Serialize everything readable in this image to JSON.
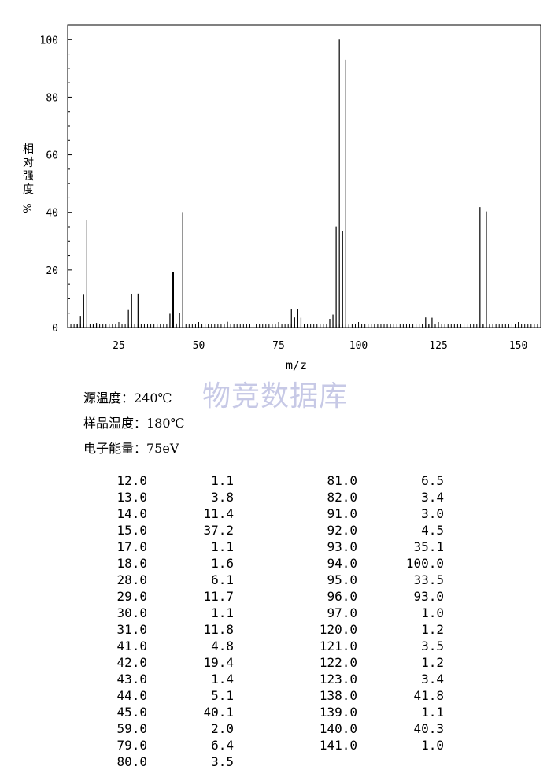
{
  "chart_data": {
    "type": "bar",
    "title": "",
    "xlabel": "m/z",
    "ylabel": "相对强度%",
    "ylabel_chars": [
      "相",
      "对",
      "强",
      "度"
    ],
    "ylabel_suffix": "%",
    "xlim": [
      9,
      157
    ],
    "ylim": [
      0,
      105
    ],
    "x_ticks": [
      "25",
      "50",
      "75",
      "100",
      "125",
      "150"
    ],
    "y_ticks": [
      "0",
      "20",
      "40",
      "60",
      "80",
      "100"
    ],
    "peaks": [
      {
        "mz": 12.0,
        "intensity": 1.1
      },
      {
        "mz": 13.0,
        "intensity": 3.8
      },
      {
        "mz": 14.0,
        "intensity": 11.4
      },
      {
        "mz": 15.0,
        "intensity": 37.2
      },
      {
        "mz": 17.0,
        "intensity": 1.1
      },
      {
        "mz": 18.0,
        "intensity": 1.6
      },
      {
        "mz": 28.0,
        "intensity": 6.1
      },
      {
        "mz": 29.0,
        "intensity": 11.7
      },
      {
        "mz": 30.0,
        "intensity": 1.1
      },
      {
        "mz": 31.0,
        "intensity": 11.8
      },
      {
        "mz": 41.0,
        "intensity": 4.8
      },
      {
        "mz": 42.0,
        "intensity": 19.4
      },
      {
        "mz": 43.0,
        "intensity": 1.4
      },
      {
        "mz": 44.0,
        "intensity": 5.1
      },
      {
        "mz": 45.0,
        "intensity": 40.1
      },
      {
        "mz": 59.0,
        "intensity": 2.0
      },
      {
        "mz": 79.0,
        "intensity": 6.4
      },
      {
        "mz": 80.0,
        "intensity": 3.5
      },
      {
        "mz": 81.0,
        "intensity": 6.5
      },
      {
        "mz": 82.0,
        "intensity": 3.4
      },
      {
        "mz": 91.0,
        "intensity": 3.0
      },
      {
        "mz": 92.0,
        "intensity": 4.5
      },
      {
        "mz": 93.0,
        "intensity": 35.1
      },
      {
        "mz": 94.0,
        "intensity": 100.0
      },
      {
        "mz": 95.0,
        "intensity": 33.5
      },
      {
        "mz": 96.0,
        "intensity": 93.0
      },
      {
        "mz": 97.0,
        "intensity": 1.0
      },
      {
        "mz": 120.0,
        "intensity": 1.2
      },
      {
        "mz": 121.0,
        "intensity": 3.5
      },
      {
        "mz": 122.0,
        "intensity": 1.2
      },
      {
        "mz": 123.0,
        "intensity": 3.4
      },
      {
        "mz": 138.0,
        "intensity": 41.8
      },
      {
        "mz": 139.0,
        "intensity": 1.1
      },
      {
        "mz": 140.0,
        "intensity": 40.3
      },
      {
        "mz": 141.0,
        "intensity": 1.0
      }
    ]
  },
  "watermark": "物竞数据库",
  "conditions": {
    "source_temp": "源温度：240℃",
    "sample_temp": "样品温度：180℃",
    "electron_energy": "电子能量：75eV"
  },
  "table": {
    "left": [
      [
        "12.0",
        "1.1"
      ],
      [
        "13.0",
        "3.8"
      ],
      [
        "14.0",
        "11.4"
      ],
      [
        "15.0",
        "37.2"
      ],
      [
        "17.0",
        "1.1"
      ],
      [
        "18.0",
        "1.6"
      ],
      [
        "28.0",
        "6.1"
      ],
      [
        "29.0",
        "11.7"
      ],
      [
        "30.0",
        "1.1"
      ],
      [
        "31.0",
        "11.8"
      ],
      [
        "41.0",
        "4.8"
      ],
      [
        "42.0",
        "19.4"
      ],
      [
        "43.0",
        "1.4"
      ],
      [
        "44.0",
        "5.1"
      ],
      [
        "45.0",
        "40.1"
      ],
      [
        "59.0",
        "2.0"
      ],
      [
        "79.0",
        "6.4"
      ],
      [
        "80.0",
        "3.5"
      ]
    ],
    "right": [
      [
        "81.0",
        "6.5"
      ],
      [
        "82.0",
        "3.4"
      ],
      [
        "91.0",
        "3.0"
      ],
      [
        "92.0",
        "4.5"
      ],
      [
        "93.0",
        "35.1"
      ],
      [
        "94.0",
        "100.0"
      ],
      [
        "95.0",
        "33.5"
      ],
      [
        "96.0",
        "93.0"
      ],
      [
        "97.0",
        "1.0"
      ],
      [
        "120.0",
        "1.2"
      ],
      [
        "121.0",
        "3.5"
      ],
      [
        "122.0",
        "1.2"
      ],
      [
        "123.0",
        "3.4"
      ],
      [
        "138.0",
        "41.8"
      ],
      [
        "139.0",
        "1.1"
      ],
      [
        "140.0",
        "40.3"
      ],
      [
        "141.0",
        "1.0"
      ]
    ]
  }
}
